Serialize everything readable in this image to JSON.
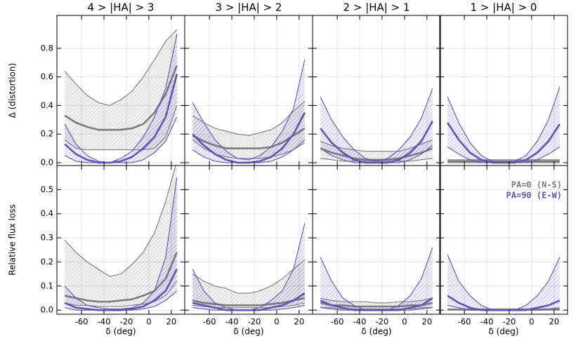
{
  "chart_data": {
    "type": "band",
    "x": [
      -75,
      -65,
      -55,
      -45,
      -35,
      -25,
      -15,
      -5,
      5,
      15,
      25
    ],
    "xlim": [
      -82,
      32
    ],
    "xticks": [
      -60,
      -40,
      -20,
      0,
      20
    ],
    "xlabel": "δ (deg)",
    "grid": true,
    "legend": "upper right",
    "columns": [
      "4 > |HA| > 3",
      "3 > |HA| > 2",
      "2 > |HA| > 1",
      "1 > |HA| > 0"
    ],
    "series": [
      {
        "name": "PA=0 (N-S)",
        "color": "#7a7a7a"
      },
      {
        "name": "PA=90 (E-W)",
        "color": "#6553b0"
      }
    ],
    "rows": [
      {
        "ylabel": "Δ (distortion)",
        "ylim": [
          -0.02,
          1.03
        ],
        "yticks": [
          {
            "value": 0,
            "label": "0.0"
          },
          {
            "value": 0.2,
            "label": "0.2"
          },
          {
            "value": 0.4,
            "label": "0.4"
          },
          {
            "value": 0.6,
            "label": "0.6"
          },
          {
            "value": 0.8,
            "label": "0.8"
          }
        ],
        "panels": [
          {
            "series": [
              {
                "values": [
                  0.33,
                  0.28,
                  0.25,
                  0.23,
                  0.23,
                  0.23,
                  0.24,
                  0.27,
                  0.35,
                  0.48,
                  0.68
                ],
                "low": [
                  0.16,
                  0.1,
                  0.09,
                  0.09,
                  0.09,
                  0.09,
                  0.09,
                  0.09,
                  0.1,
                  0.18,
                  0.4
                ],
                "high": [
                  0.64,
                  0.55,
                  0.47,
                  0.42,
                  0.4,
                  0.44,
                  0.5,
                  0.6,
                  0.72,
                  0.85,
                  0.93
                ]
              },
              {
                "values": [
                  0.13,
                  0.06,
                  0.02,
                  0,
                  0,
                  0.01,
                  0.04,
                  0.1,
                  0.18,
                  0.32,
                  0.62
                ],
                "low": [
                  0.05,
                  0.01,
                  0,
                  0,
                  0,
                  0,
                  0,
                  0.02,
                  0.07,
                  0.15,
                  0.32
                ],
                "high": [
                  0.27,
                  0.13,
                  0.05,
                  0.01,
                  0,
                  0.03,
                  0.08,
                  0.18,
                  0.32,
                  0.52,
                  0.9
                ]
              }
            ]
          },
          {
            "series": [
              {
                "values": [
                  0.19,
                  0.15,
                  0.12,
                  0.1,
                  0.1,
                  0.1,
                  0.1,
                  0.11,
                  0.14,
                  0.19,
                  0.24
                ],
                "low": [
                  0.16,
                  0.1,
                  0.06,
                  0.04,
                  0.03,
                  0.03,
                  0.03,
                  0.04,
                  0.06,
                  0.09,
                  0.14
                ],
                "high": [
                  0.33,
                  0.28,
                  0.24,
                  0.22,
                  0.2,
                  0.19,
                  0.21,
                  0.23,
                  0.28,
                  0.36,
                  0.43
                ]
              },
              {
                "values": [
                  0.2,
                  0.12,
                  0.06,
                  0.02,
                  0,
                  0,
                  0.01,
                  0.04,
                  0.1,
                  0.2,
                  0.35
                ],
                "low": [
                  0.09,
                  0.04,
                  0.01,
                  0,
                  0,
                  0,
                  0,
                  0.01,
                  0.04,
                  0.09,
                  0.16
                ],
                "high": [
                  0.42,
                  0.28,
                  0.16,
                  0.08,
                  0.03,
                  0.02,
                  0.05,
                  0.11,
                  0.22,
                  0.38,
                  0.72
                ]
              }
            ]
          },
          {
            "series": [
              {
                "values": [
                  0.1,
                  0.07,
                  0.05,
                  0.03,
                  0.02,
                  0.02,
                  0.02,
                  0.03,
                  0.05,
                  0.07,
                  0.1
                ],
                "low": [
                  0.03,
                  0.02,
                  0.01,
                  0.01,
                  0.01,
                  0.01,
                  0.01,
                  0.01,
                  0.01,
                  0.02,
                  0.03
                ],
                "high": [
                  0.15,
                  0.12,
                  0.1,
                  0.09,
                  0.08,
                  0.08,
                  0.08,
                  0.08,
                  0.1,
                  0.13,
                  0.16
                ]
              },
              {
                "values": [
                  0.24,
                  0.14,
                  0.07,
                  0.02,
                  0,
                  0,
                  0,
                  0.02,
                  0.07,
                  0.15,
                  0.29
                ],
                "low": [
                  0.1,
                  0.05,
                  0.02,
                  0,
                  0,
                  0,
                  0,
                  0,
                  0.02,
                  0.06,
                  0.12
                ],
                "high": [
                  0.46,
                  0.3,
                  0.18,
                  0.09,
                  0.03,
                  0.01,
                  0.03,
                  0.09,
                  0.18,
                  0.31,
                  0.52
                ]
              }
            ]
          },
          {
            "series": [
              {
                "values": [
                  0.01,
                  0.01,
                  0.01,
                  0.01,
                  0.01,
                  0.01,
                  0.01,
                  0.01,
                  0.01,
                  0.01,
                  0.01
                ],
                "low": [
                  0,
                  0,
                  0,
                  0,
                  0,
                  0,
                  0,
                  0,
                  0,
                  0,
                  0
                ],
                "high": [
                  0.02,
                  0.02,
                  0.02,
                  0.02,
                  0.02,
                  0.02,
                  0.02,
                  0.02,
                  0.02,
                  0.02,
                  0.02
                ]
              },
              {
                "values": [
                  0.28,
                  0.16,
                  0.07,
                  0.02,
                  0,
                  0,
                  0,
                  0.02,
                  0.07,
                  0.15,
                  0.27
                ],
                "low": [
                  0.11,
                  0.06,
                  0.02,
                  0,
                  0,
                  0,
                  0,
                  0,
                  0.02,
                  0.06,
                  0.11
                ],
                "high": [
                  0.46,
                  0.28,
                  0.14,
                  0.05,
                  0.01,
                  0,
                  0.01,
                  0.05,
                  0.15,
                  0.3,
                  0.53
                ]
              }
            ]
          }
        ]
      },
      {
        "ylabel": "Relative flux loss",
        "ylim": [
          -0.017,
          0.6
        ],
        "yticks": [
          {
            "value": 0,
            "label": "0.0"
          },
          {
            "value": 0.1,
            "label": "0.1"
          },
          {
            "value": 0.2,
            "label": "0.2"
          },
          {
            "value": 0.3,
            "label": "0.3"
          },
          {
            "value": 0.4,
            "label": "0.4"
          },
          {
            "value": 0.5,
            "label": "0.5"
          }
        ],
        "panels": [
          {
            "series": [
              {
                "values": [
                  0.06,
                  0.05,
                  0.04,
                  0.035,
                  0.035,
                  0.04,
                  0.045,
                  0.06,
                  0.08,
                  0.13,
                  0.24
                ],
                "low": [
                  0.03,
                  0.02,
                  0.02,
                  0.015,
                  0.015,
                  0.015,
                  0.02,
                  0.025,
                  0.035,
                  0.06,
                  0.12
                ],
                "high": [
                  0.29,
                  0.24,
                  0.2,
                  0.17,
                  0.14,
                  0.15,
                  0.19,
                  0.24,
                  0.32,
                  0.45,
                  0.62
                ]
              },
              {
                "values": [
                  0.03,
                  0.01,
                  0.005,
                  0,
                  0,
                  0,
                  0.005,
                  0.015,
                  0.04,
                  0.08,
                  0.17
                ],
                "low": [
                  0.01,
                  0,
                  0,
                  0,
                  0,
                  0,
                  0,
                  0.005,
                  0.015,
                  0.04,
                  0.08
                ],
                "high": [
                  0.1,
                  0.05,
                  0.02,
                  0.01,
                  0.005,
                  0.005,
                  0.01,
                  0.03,
                  0.08,
                  0.22,
                  0.55
                ]
              }
            ]
          },
          {
            "series": [
              {
                "values": [
                  0.04,
                  0.03,
                  0.025,
                  0.02,
                  0.02,
                  0.02,
                  0.02,
                  0.025,
                  0.03,
                  0.04,
                  0.05
                ],
                "low": [
                  0.02,
                  0.015,
                  0.01,
                  0.01,
                  0.01,
                  0.01,
                  0.01,
                  0.01,
                  0.015,
                  0.02,
                  0.03
                ],
                "high": [
                  0.15,
                  0.12,
                  0.1,
                  0.09,
                  0.07,
                  0.07,
                  0.08,
                  0.1,
                  0.13,
                  0.17,
                  0.21
                ]
              },
              {
                "values": [
                  0.03,
                  0.02,
                  0.01,
                  0,
                  0,
                  0,
                  0,
                  0.01,
                  0.02,
                  0.04,
                  0.07
                ],
                "low": [
                  0.01,
                  0.005,
                  0,
                  0,
                  0,
                  0,
                  0,
                  0,
                  0.005,
                  0.01,
                  0.02
                ],
                "high": [
                  0.17,
                  0.08,
                  0.03,
                  0.01,
                  0,
                  0,
                  0.01,
                  0.04,
                  0.08,
                  0.17,
                  0.36
                ]
              }
            ]
          },
          {
            "series": [
              {
                "values": [
                  0.03,
                  0.02,
                  0.02,
                  0.015,
                  0.015,
                  0.015,
                  0.015,
                  0.015,
                  0.02,
                  0.02,
                  0.03
                ],
                "low": [
                  0.01,
                  0.01,
                  0.005,
                  0.005,
                  0.005,
                  0.005,
                  0.005,
                  0.005,
                  0.005,
                  0.01,
                  0.01
                ],
                "high": [
                  0.05,
                  0.04,
                  0.035,
                  0.035,
                  0.035,
                  0.03,
                  0.03,
                  0.035,
                  0.035,
                  0.04,
                  0.05
                ]
              },
              {
                "values": [
                  0.04,
                  0.02,
                  0.01,
                  0,
                  0,
                  0,
                  0,
                  0,
                  0.01,
                  0.02,
                  0.05
                ],
                "low": [
                  0.01,
                  0.005,
                  0,
                  0,
                  0,
                  0,
                  0,
                  0,
                  0,
                  0.005,
                  0.01
                ],
                "high": [
                  0.22,
                  0.12,
                  0.05,
                  0.02,
                  0,
                  0,
                  0,
                  0.02,
                  0.06,
                  0.13,
                  0.26
                ]
              }
            ]
          },
          {
            "series": [
              {
                "values": [
                  0.003,
                  0.003,
                  0.003,
                  0.003,
                  0.003,
                  0.003,
                  0.003,
                  0.003,
                  0.003,
                  0.003,
                  0.003
                ],
                "low": [
                  0,
                  0,
                  0,
                  0,
                  0,
                  0,
                  0,
                  0,
                  0,
                  0,
                  0
                ],
                "high": [
                  0.005,
                  0.005,
                  0.005,
                  0.005,
                  0.005,
                  0.005,
                  0.005,
                  0.005,
                  0.005,
                  0.005,
                  0.005
                ]
              },
              {
                "values": [
                  0.06,
                  0.03,
                  0.01,
                  0,
                  0,
                  0,
                  0,
                  0,
                  0.01,
                  0.02,
                  0.04
                ],
                "low": [
                  0.02,
                  0.01,
                  0,
                  0,
                  0,
                  0,
                  0,
                  0,
                  0,
                  0.005,
                  0.01
                ],
                "high": [
                  0.23,
                  0.12,
                  0.06,
                  0.02,
                  0,
                  0,
                  0,
                  0.02,
                  0.06,
                  0.12,
                  0.22
                ]
              }
            ]
          }
        ]
      }
    ]
  }
}
